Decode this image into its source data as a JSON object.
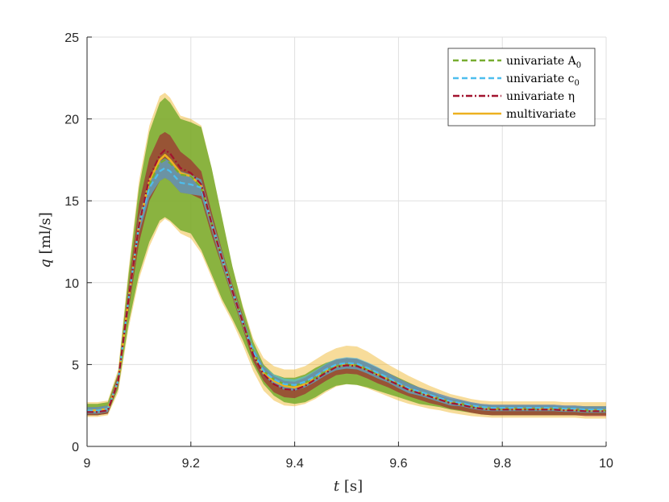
{
  "chart_data": {
    "type": "line",
    "title": "",
    "xlabel": "t [s]",
    "xlabel_var": "t",
    "xlabel_unit": "[s]",
    "ylabel": "q [ml/s]",
    "ylabel_var": "q",
    "ylabel_unit": "[ml/s]",
    "xlim": [
      9,
      10
    ],
    "ylim": [
      0,
      25
    ],
    "xticks": [
      9,
      9.2,
      9.4,
      9.6,
      9.8,
      10
    ],
    "xtick_labels": [
      "9",
      "9.2",
      "9.4",
      "9.6",
      "9.8",
      "10"
    ],
    "yticks": [
      0,
      5,
      10,
      15,
      20,
      25
    ],
    "ytick_labels": [
      "0",
      "5",
      "10",
      "15",
      "20",
      "25"
    ],
    "grid": true,
    "legend_position": "top-right",
    "x": [
      9.0,
      9.02,
      9.04,
      9.06,
      9.08,
      9.1,
      9.12,
      9.14,
      9.15,
      9.16,
      9.18,
      9.2,
      9.22,
      9.24,
      9.26,
      9.28,
      9.3,
      9.32,
      9.34,
      9.36,
      9.38,
      9.4,
      9.42,
      9.44,
      9.46,
      9.48,
      9.5,
      9.52,
      9.54,
      9.56,
      9.58,
      9.6,
      9.62,
      9.64,
      9.66,
      9.68,
      9.7,
      9.72,
      9.74,
      9.76,
      9.78,
      9.8,
      9.82,
      9.84,
      9.86,
      9.88,
      9.9,
      9.92,
      9.94,
      9.96,
      9.98,
      10.0
    ],
    "series": [
      {
        "name": "univariate A",
        "name_sub": "0",
        "color": "#77AC30",
        "style": "dashed",
        "mean": [
          2.2,
          2.2,
          2.3,
          4.0,
          9.0,
          13.5,
          16.0,
          17.3,
          17.5,
          17.3,
          16.6,
          16.5,
          15.8,
          13.6,
          11.5,
          9.5,
          7.6,
          5.8,
          4.6,
          4.1,
          3.8,
          3.7,
          3.9,
          4.2,
          4.6,
          4.9,
          5.0,
          4.95,
          4.7,
          4.4,
          4.1,
          3.8,
          3.5,
          3.3,
          3.1,
          2.9,
          2.7,
          2.6,
          2.45,
          2.35,
          2.3,
          2.3,
          2.3,
          2.3,
          2.3,
          2.3,
          2.3,
          2.3,
          2.25,
          2.2,
          2.2,
          2.2
        ],
        "upper": [
          2.6,
          2.6,
          2.7,
          4.5,
          10.5,
          15.8,
          19.2,
          21.0,
          21.3,
          21.0,
          20.0,
          19.8,
          19.5,
          17.0,
          14.0,
          11.0,
          8.5,
          6.4,
          5.0,
          4.4,
          4.2,
          4.2,
          4.4,
          4.8,
          5.1,
          5.3,
          5.4,
          5.35,
          5.1,
          4.8,
          4.5,
          4.2,
          3.9,
          3.6,
          3.35,
          3.1,
          2.9,
          2.8,
          2.65,
          2.55,
          2.5,
          2.5,
          2.5,
          2.5,
          2.5,
          2.5,
          2.5,
          2.45,
          2.45,
          2.45,
          2.45,
          2.45
        ],
        "lower": [
          1.9,
          1.9,
          2.0,
          3.5,
          7.5,
          10.5,
          12.5,
          13.8,
          14.0,
          13.8,
          13.2,
          13.0,
          12.0,
          10.5,
          9.0,
          7.8,
          6.5,
          5.0,
          3.8,
          3.1,
          2.7,
          2.6,
          2.7,
          3.0,
          3.4,
          3.7,
          3.8,
          3.75,
          3.6,
          3.4,
          3.2,
          3.0,
          2.8,
          2.6,
          2.5,
          2.4,
          2.25,
          2.15,
          2.05,
          1.95,
          1.9,
          1.9,
          1.9,
          1.9,
          1.9,
          1.9,
          1.9,
          1.9,
          1.9,
          1.9,
          1.9,
          1.9
        ]
      },
      {
        "name": "univariate c",
        "name_sub": "0",
        "color": "#4DBEEE",
        "style": "dashed",
        "mean": [
          2.2,
          2.2,
          2.3,
          4.0,
          9.0,
          13.5,
          15.8,
          16.8,
          17.0,
          16.8,
          16.1,
          16.0,
          15.8,
          13.6,
          11.5,
          9.5,
          7.6,
          5.8,
          4.6,
          4.1,
          3.8,
          3.75,
          3.95,
          4.3,
          4.7,
          5.0,
          5.1,
          5.05,
          4.8,
          4.5,
          4.2,
          3.85,
          3.55,
          3.35,
          3.15,
          2.95,
          2.75,
          2.65,
          2.5,
          2.4,
          2.35,
          2.35,
          2.35,
          2.35,
          2.35,
          2.35,
          2.35,
          2.3,
          2.3,
          2.25,
          2.25,
          2.25
        ],
        "upper": [
          2.4,
          2.4,
          2.5,
          4.2,
          9.4,
          14.0,
          16.4,
          17.4,
          17.6,
          17.4,
          16.8,
          16.6,
          16.3,
          14.0,
          11.9,
          9.8,
          7.9,
          6.1,
          4.9,
          4.4,
          4.15,
          4.1,
          4.3,
          4.65,
          5.05,
          5.35,
          5.45,
          5.4,
          5.15,
          4.85,
          4.5,
          4.15,
          3.85,
          3.6,
          3.4,
          3.2,
          3.0,
          2.85,
          2.7,
          2.6,
          2.55,
          2.55,
          2.55,
          2.55,
          2.55,
          2.55,
          2.55,
          2.5,
          2.5,
          2.45,
          2.45,
          2.45
        ],
        "lower": [
          2.0,
          2.0,
          2.1,
          3.8,
          8.6,
          13.0,
          15.2,
          16.2,
          16.4,
          16.2,
          15.5,
          15.4,
          15.3,
          13.2,
          11.1,
          9.2,
          7.3,
          5.5,
          4.3,
          3.8,
          3.45,
          3.4,
          3.6,
          3.95,
          4.35,
          4.65,
          4.75,
          4.7,
          4.45,
          4.15,
          3.9,
          3.55,
          3.25,
          3.1,
          2.9,
          2.7,
          2.5,
          2.45,
          2.3,
          2.2,
          2.15,
          2.15,
          2.15,
          2.15,
          2.15,
          2.15,
          2.15,
          2.1,
          2.1,
          2.05,
          2.05,
          2.05
        ]
      },
      {
        "name": "univariate η",
        "name_sub": "",
        "color": "#A2142F",
        "style": "dashdot",
        "mean": [
          2.1,
          2.1,
          2.2,
          4.0,
          9.0,
          13.5,
          16.4,
          17.8,
          18.1,
          17.9,
          17.0,
          16.7,
          16.0,
          13.6,
          11.5,
          9.5,
          7.6,
          5.6,
          4.4,
          3.8,
          3.5,
          3.45,
          3.7,
          4.1,
          4.5,
          4.85,
          4.95,
          4.9,
          4.65,
          4.35,
          4.05,
          3.75,
          3.45,
          3.25,
          3.05,
          2.85,
          2.65,
          2.55,
          2.4,
          2.3,
          2.25,
          2.25,
          2.25,
          2.25,
          2.25,
          2.25,
          2.25,
          2.2,
          2.2,
          2.15,
          2.15,
          2.15
        ],
        "upper": [
          2.4,
          2.4,
          2.5,
          4.4,
          9.8,
          14.8,
          17.6,
          19.0,
          19.2,
          19.0,
          18.0,
          17.5,
          16.8,
          14.3,
          12.0,
          9.9,
          8.0,
          6.0,
          4.9,
          4.3,
          4.0,
          3.95,
          4.2,
          4.6,
          5.0,
          5.3,
          5.4,
          5.35,
          5.1,
          4.8,
          4.5,
          4.15,
          3.85,
          3.6,
          3.4,
          3.2,
          3.0,
          2.85,
          2.7,
          2.6,
          2.55,
          2.55,
          2.55,
          2.55,
          2.55,
          2.55,
          2.55,
          2.5,
          2.5,
          2.45,
          2.45,
          2.45
        ],
        "lower": [
          1.9,
          1.9,
          2.0,
          3.7,
          8.3,
          12.4,
          15.0,
          16.2,
          16.4,
          16.2,
          15.5,
          15.4,
          15.1,
          12.9,
          11.0,
          9.1,
          7.2,
          5.2,
          4.0,
          3.3,
          3.0,
          2.95,
          3.2,
          3.6,
          4.0,
          4.35,
          4.45,
          4.4,
          4.15,
          3.85,
          3.6,
          3.3,
          3.05,
          2.85,
          2.65,
          2.5,
          2.3,
          2.2,
          2.05,
          1.95,
          1.9,
          1.9,
          1.9,
          1.9,
          1.9,
          1.9,
          1.9,
          1.9,
          1.9,
          1.85,
          1.85,
          1.85
        ]
      },
      {
        "name": "multivariate",
        "name_sub": "",
        "color": "#EDB120",
        "style": "solid",
        "mean": [
          2.2,
          2.2,
          2.3,
          4.0,
          9.0,
          13.5,
          16.2,
          17.5,
          17.8,
          17.5,
          16.7,
          16.5,
          15.9,
          13.6,
          11.5,
          9.5,
          7.6,
          5.7,
          4.5,
          4.0,
          3.7,
          3.6,
          3.8,
          4.2,
          4.6,
          4.9,
          5.0,
          4.95,
          4.7,
          4.4,
          4.1,
          3.8,
          3.5,
          3.3,
          3.1,
          2.9,
          2.7,
          2.6,
          2.45,
          2.35,
          2.3,
          2.3,
          2.3,
          2.3,
          2.3,
          2.3,
          2.3,
          2.25,
          2.25,
          2.2,
          2.2,
          2.2
        ],
        "upper": [
          2.7,
          2.7,
          2.8,
          4.7,
          10.8,
          16.2,
          19.6,
          21.4,
          21.6,
          21.3,
          20.2,
          20.0,
          19.6,
          17.0,
          14.0,
          11.0,
          8.6,
          6.6,
          5.4,
          4.9,
          4.7,
          4.7,
          4.9,
          5.3,
          5.7,
          6.0,
          6.15,
          6.1,
          5.8,
          5.4,
          5.0,
          4.65,
          4.3,
          4.0,
          3.7,
          3.45,
          3.2,
          3.05,
          2.9,
          2.8,
          2.75,
          2.75,
          2.75,
          2.75,
          2.75,
          2.75,
          2.75,
          2.7,
          2.7,
          2.7,
          2.7,
          2.7
        ],
        "lower": [
          1.8,
          1.8,
          1.9,
          3.3,
          7.2,
          10.2,
          12.2,
          13.6,
          13.9,
          13.7,
          13.0,
          12.7,
          11.8,
          10.3,
          8.8,
          7.6,
          6.2,
          4.6,
          3.4,
          2.8,
          2.5,
          2.45,
          2.6,
          2.9,
          3.3,
          3.65,
          3.8,
          3.75,
          3.55,
          3.3,
          3.05,
          2.8,
          2.6,
          2.45,
          2.3,
          2.2,
          2.05,
          1.95,
          1.85,
          1.8,
          1.75,
          1.75,
          1.75,
          1.75,
          1.75,
          1.75,
          1.75,
          1.75,
          1.75,
          1.7,
          1.7,
          1.7
        ]
      }
    ]
  }
}
